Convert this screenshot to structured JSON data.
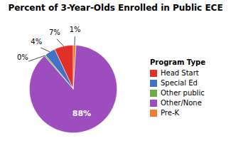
{
  "chart_data": {
    "type": "pie",
    "title": "Percent of 3-Year-Olds Enrolled in Public ECE",
    "categories": [
      "Head Start",
      "Special Ed",
      "Other public",
      "Other/None",
      "Pre-K"
    ],
    "values": [
      7,
      4,
      0.5,
      88,
      1
    ],
    "value_labels": [
      "7%",
      "4%",
      "0%",
      "88%",
      "1%"
    ],
    "colors": [
      "#e23028",
      "#4472c4",
      "#70ad47",
      "#9e4dbf",
      "#ed7d31"
    ],
    "data_labels": true,
    "legend": "right",
    "legend_title": "Program Type"
  }
}
